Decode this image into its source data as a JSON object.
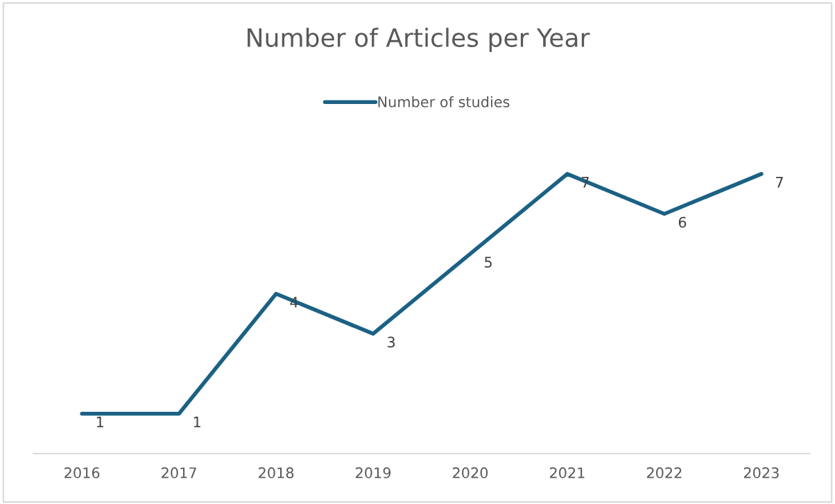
{
  "chart_data": {
    "type": "line",
    "title": "Number of Articles per Year",
    "categories": [
      "2016",
      "2017",
      "2018",
      "2019",
      "2020",
      "2021",
      "2022",
      "2023"
    ],
    "series": [
      {
        "name": "Number of studies",
        "color": "#1b6184",
        "values": [
          1,
          1,
          4,
          3,
          5,
          7,
          6,
          7
        ]
      }
    ],
    "tick_labels": "x",
    "data_labels": true,
    "legend": "top",
    "grid": false,
    "marker": "none",
    "line_style": "solid"
  }
}
